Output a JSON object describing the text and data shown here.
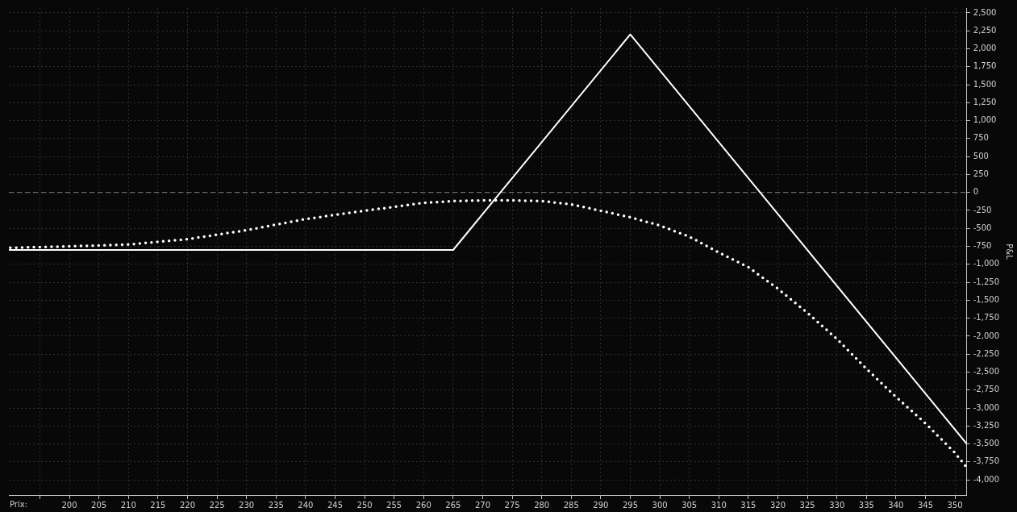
{
  "chart_data": {
    "type": "line",
    "xlabel": "Prix:",
    "ylabel": "P&L",
    "xlim": [
      189.75,
      352
    ],
    "ylim": [
      -4212,
      2567
    ],
    "xticks": [
      {
        "value": 195,
        "label": null
      },
      200,
      205,
      210,
      215,
      220,
      225,
      230,
      235,
      240,
      245,
      250,
      255,
      260,
      265,
      270,
      275,
      280,
      285,
      290,
      295,
      300,
      305,
      310,
      315,
      320,
      325,
      330,
      335,
      340,
      345,
      350
    ],
    "yticks": [
      {
        "value": 2500,
        "label": "2,500"
      },
      {
        "value": 2250,
        "label": "2,250"
      },
      {
        "value": 2000,
        "label": "2,000"
      },
      {
        "value": 1750,
        "label": "1,750"
      },
      {
        "value": 1500,
        "label": "1,500"
      },
      {
        "value": 1250,
        "label": "1,250"
      },
      {
        "value": 1000,
        "label": "1,000"
      },
      750,
      500,
      250,
      0,
      -250,
      -500,
      -750,
      {
        "value": -1000,
        "label": "-1,000"
      },
      {
        "value": -1250,
        "label": "-1,250"
      },
      {
        "value": -1500,
        "label": "-1,500"
      },
      {
        "value": -1750,
        "label": "-1,750"
      },
      {
        "value": -2000,
        "label": "-2,000"
      },
      {
        "value": -2250,
        "label": "-2,250"
      },
      {
        "value": -2500,
        "label": "-2,500"
      },
      {
        "value": -2750,
        "label": "-2,750"
      },
      {
        "value": -3000,
        "label": "-3,000"
      },
      {
        "value": -3250,
        "label": "-3,250"
      },
      {
        "value": -3500,
        "label": "-3,500"
      },
      {
        "value": -3750,
        "label": "-3,750"
      },
      {
        "value": -4000,
        "label": "-4,000"
      }
    ],
    "grid": true,
    "legend": false,
    "ref_lines": [
      {
        "axis": "y",
        "value": 0,
        "color": "#808080",
        "line_style": "dashed"
      }
    ],
    "series": [
      {
        "color": "#ffffff",
        "line_style": "solid",
        "x": [
          189.75,
          265,
          295,
          352
        ],
        "values": [
          -800,
          -800,
          2200,
          -3500
        ]
      },
      {
        "color": "#ffffff",
        "line_style": "dotted",
        "x": [
          190,
          200,
          210,
          220,
          230,
          240,
          250,
          260,
          265,
          270,
          275,
          280,
          285,
          290,
          295,
          300,
          305,
          310,
          315,
          320,
          325,
          330,
          335,
          340,
          345,
          350,
          352
        ],
        "values": [
          -770,
          -750,
          -725,
          -650,
          -525,
          -370,
          -255,
          -145,
          -120,
          -110,
          -110,
          -120,
          -165,
          -255,
          -345,
          -460,
          -615,
          -835,
          -1040,
          -1340,
          -1675,
          -2040,
          -2455,
          -2845,
          -3215,
          -3625,
          -3830
        ]
      }
    ]
  }
}
